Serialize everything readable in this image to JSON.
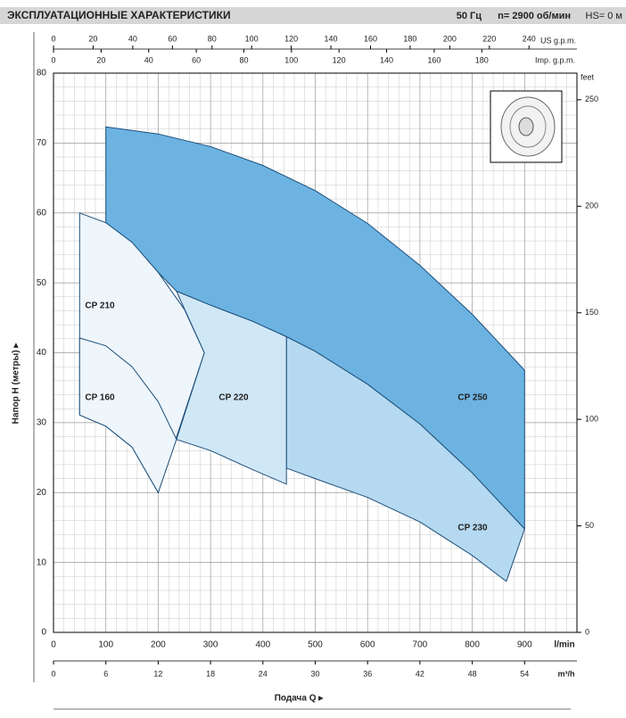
{
  "chart_data": {
    "type": "area",
    "title": "ЭКСПЛУАТАЦИОННЫЕ ХАРАКТЕРИСТИКИ",
    "frequency": "50 Гц",
    "speed": "n= 2900 об/мин",
    "suction": "HS= 0 м",
    "xlabel": "Подача Q ▸",
    "ylabel": "Напор H (метры) ▸",
    "x_unit": "l/min",
    "xlim": [
      0,
      1000
    ],
    "xticks": [
      0,
      100,
      200,
      300,
      400,
      500,
      600,
      700,
      800,
      900
    ],
    "ylim": [
      0,
      80
    ],
    "yticks": [
      0,
      10,
      20,
      30,
      40,
      50,
      60,
      70,
      80
    ],
    "grid": true,
    "us_gpm_axis": {
      "unit": "US g.p.m.",
      "lim": [
        0,
        264.2
      ],
      "ticks": [
        0,
        20,
        40,
        60,
        80,
        100,
        120,
        140,
        160,
        180,
        200,
        220,
        240
      ]
    },
    "imp_gpm_axis": {
      "unit": "Imp. g.p.m.",
      "lim": [
        0,
        220
      ],
      "ticks": [
        0,
        20,
        40,
        60,
        80,
        100,
        120,
        140,
        160,
        180
      ]
    },
    "m3h_axis": {
      "unit": "m³/h",
      "lim": [
        0,
        60
      ],
      "ticks": [
        0,
        6,
        12,
        18,
        24,
        30,
        36,
        42,
        48,
        54
      ]
    },
    "feet_axis": {
      "unit": "feet",
      "lim": [
        0,
        262.5
      ],
      "ticks": [
        0,
        50,
        100,
        150,
        200,
        250
      ]
    },
    "series": [
      {
        "name": "CP 250",
        "color": "#6db3e2",
        "x": [
          100,
          200,
          300,
          400,
          500,
          600,
          700,
          800,
          900,
          900,
          800,
          700,
          600,
          500,
          445,
          380,
          300,
          235,
          200,
          150,
          100
        ],
        "values": [
          72.3,
          71.3,
          69.5,
          66.8,
          63.2,
          58.5,
          52.5,
          45.5,
          37.5,
          14.8,
          22.8,
          29.8,
          35.5,
          40.2,
          42.3,
          44.5,
          46.8,
          48.8,
          51.5,
          55.8,
          58.6
        ]
      },
      {
        "name": "CP 230",
        "color": "#b5d9f0",
        "x": [
          445,
          500,
          600,
          700,
          800,
          900,
          865,
          800,
          700,
          600,
          500,
          445
        ],
        "values": [
          42.3,
          40.2,
          35.5,
          29.8,
          22.8,
          14.8,
          7.3,
          11,
          15.8,
          19.3,
          22,
          23.5
        ]
      },
      {
        "name": "CP 220",
        "color": "#d0e7f6",
        "x": [
          235,
          300,
          380,
          445,
          445,
          380,
          300,
          235,
          288
        ],
        "values": [
          48.8,
          46.8,
          44.5,
          42.3,
          21.2,
          23.3,
          26,
          27.6,
          40
        ]
      },
      {
        "name": "CP 210",
        "color": "#eef5fb",
        "x": [
          50,
          100,
          150,
          200,
          250,
          288,
          200,
          150,
          100,
          50
        ],
        "values": [
          60,
          58.6,
          55.8,
          51.5,
          46.2,
          40,
          20,
          26.5,
          29.5,
          31.1
        ]
      },
      {
        "name": "CP 160",
        "color": "#eef5fb",
        "x": [
          50,
          100,
          150,
          200,
          235,
          200,
          150,
          100,
          50
        ],
        "values": [
          42.1,
          41,
          38,
          33,
          27.6,
          20,
          26.5,
          29.5,
          31.1
        ]
      }
    ]
  }
}
